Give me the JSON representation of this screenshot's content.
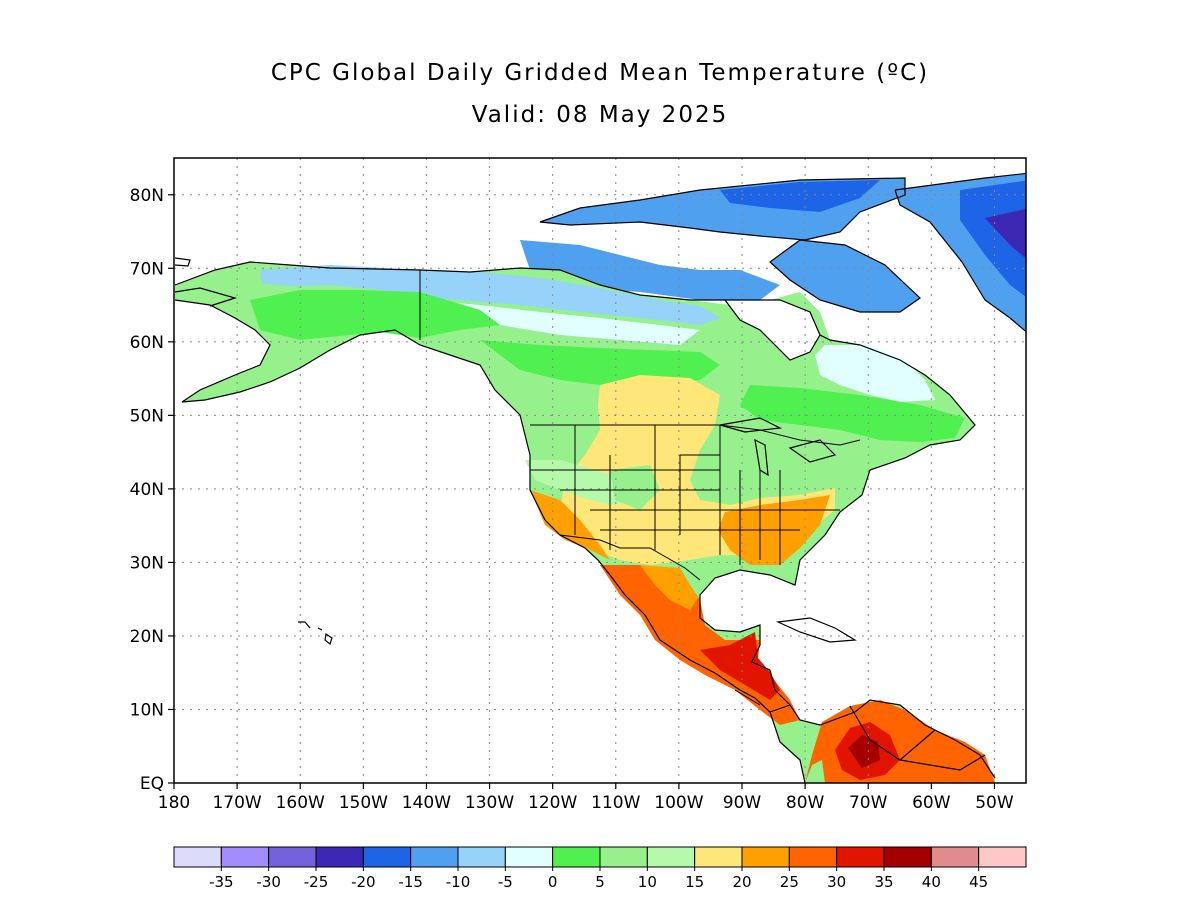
{
  "title": "CPC Global Daily Gridded Mean Temperature (ºC)",
  "subtitle": "Valid: 08 May 2025",
  "map": {
    "lon_range": [
      -180,
      -45
    ],
    "lat_range": [
      0,
      85
    ],
    "lat_ticks": [
      {
        "value": 0,
        "label": "EQ"
      },
      {
        "value": 10,
        "label": "10N"
      },
      {
        "value": 20,
        "label": "20N"
      },
      {
        "value": 30,
        "label": "30N"
      },
      {
        "value": 40,
        "label": "40N"
      },
      {
        "value": 50,
        "label": "50N"
      },
      {
        "value": 60,
        "label": "60N"
      },
      {
        "value": 70,
        "label": "70N"
      },
      {
        "value": 80,
        "label": "80N"
      }
    ],
    "lon_ticks": [
      {
        "value": -180,
        "label": "180"
      },
      {
        "value": -170,
        "label": "170W"
      },
      {
        "value": -160,
        "label": "160W"
      },
      {
        "value": -150,
        "label": "150W"
      },
      {
        "value": -140,
        "label": "140W"
      },
      {
        "value": -130,
        "label": "130W"
      },
      {
        "value": -120,
        "label": "120W"
      },
      {
        "value": -110,
        "label": "110W"
      },
      {
        "value": -100,
        "label": "100W"
      },
      {
        "value": -90,
        "label": "90W"
      },
      {
        "value": -80,
        "label": "80W"
      },
      {
        "value": -70,
        "label": "70W"
      },
      {
        "value": -60,
        "label": "60W"
      },
      {
        "value": -50,
        "label": "50W"
      }
    ],
    "grid": true,
    "region": "North America"
  },
  "colorbar": {
    "colors": [
      "#dcdcfa",
      "#a08cfa",
      "#7462dc",
      "#3c28b4",
      "#1e64e6",
      "#50a0f0",
      "#96d2fa",
      "#e1ffff",
      "#50f050",
      "#96f08c",
      "#b4faaa",
      "#ffe678",
      "#ffa000",
      "#ff6400",
      "#e11400",
      "#a50000",
      "#e18c8c",
      "#ffc8c8"
    ],
    "labels": [
      "-35",
      "-30",
      "-25",
      "-20",
      "-15",
      "-10",
      "-5",
      "0",
      "5",
      "10",
      "15",
      "20",
      "25",
      "30",
      "35",
      "40",
      "45"
    ]
  }
}
